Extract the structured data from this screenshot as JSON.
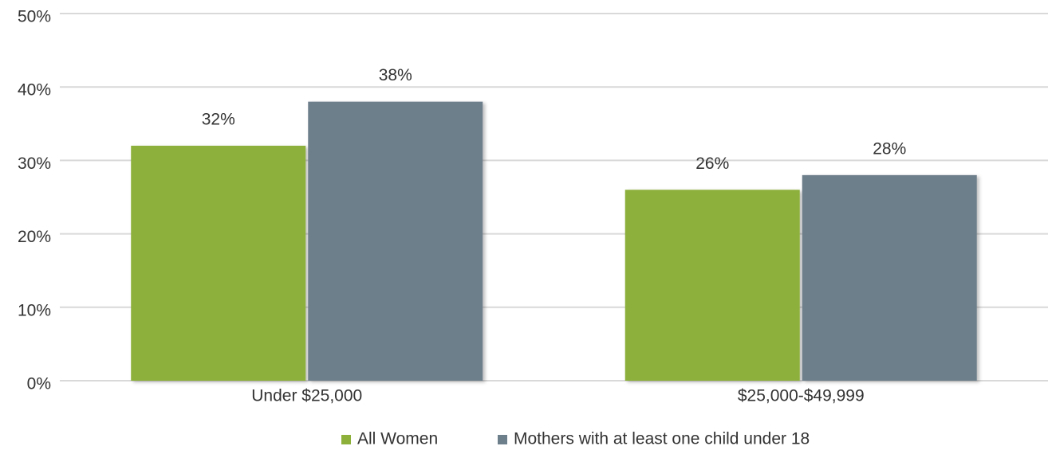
{
  "chart_data": {
    "type": "bar",
    "categories": [
      "Under $25,000",
      "$25,000-$49,999"
    ],
    "series": [
      {
        "name": "All Women",
        "color": "#8cb03a",
        "values": [
          32,
          26
        ],
        "value_labels": [
          "32%",
          "26%"
        ]
      },
      {
        "name": "Mothers with at least one child under 18",
        "color": "#6e7f8c",
        "values": [
          38,
          28
        ],
        "value_labels": [
          "38%",
          "28%"
        ]
      }
    ],
    "ylim": [
      0,
      50
    ],
    "yticks": [
      {
        "value": 0,
        "label": "0%"
      },
      {
        "value": 10,
        "label": "10%"
      },
      {
        "value": 20,
        "label": "20%"
      },
      {
        "value": 30,
        "label": "30%"
      },
      {
        "value": 40,
        "label": "40%"
      },
      {
        "value": 50,
        "label": "50%"
      }
    ],
    "grid": true,
    "legend": "bottom"
  }
}
